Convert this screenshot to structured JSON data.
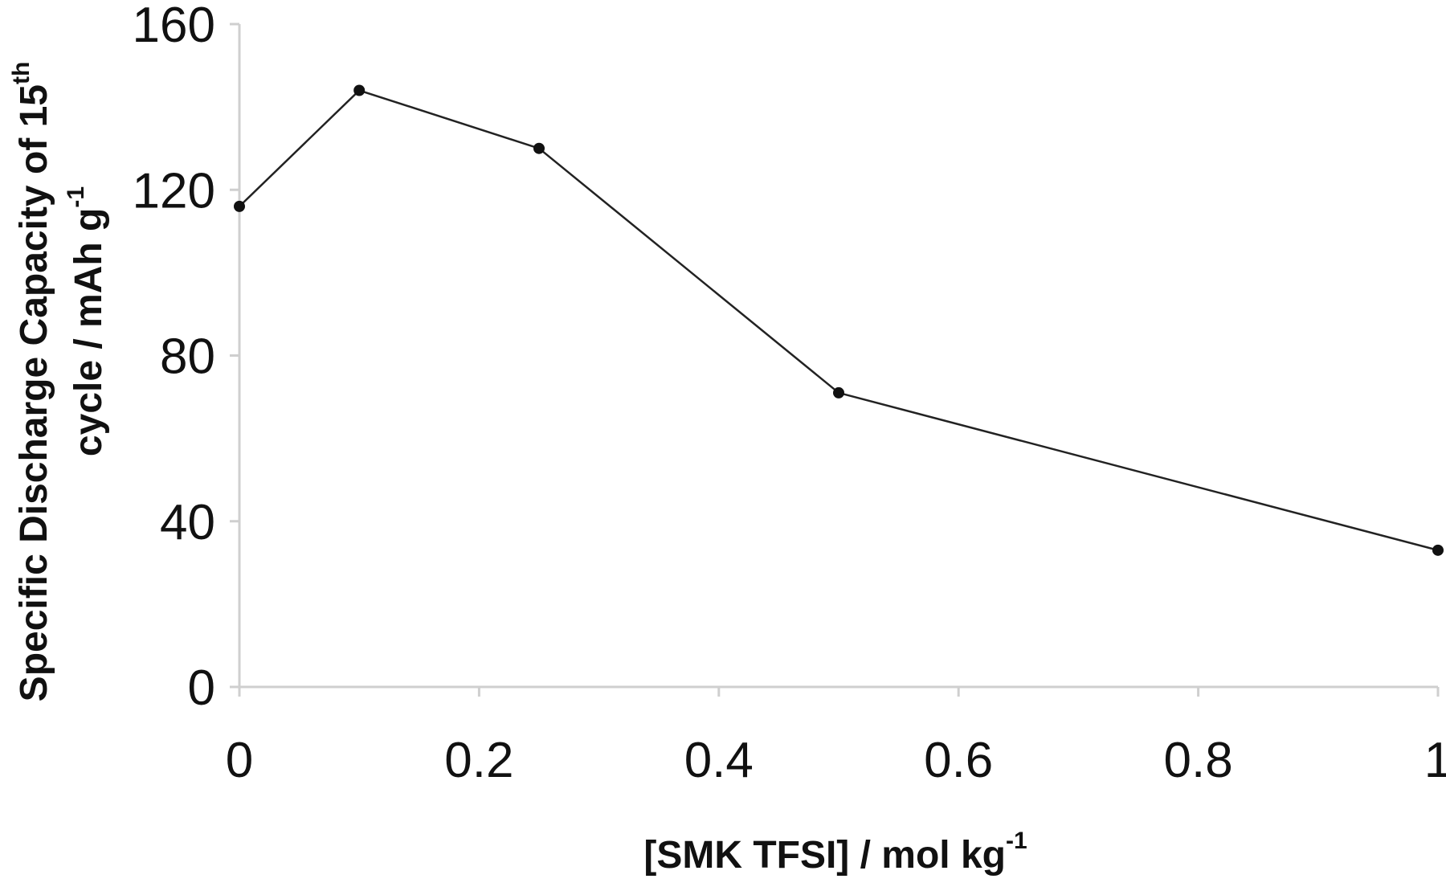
{
  "chart_data": {
    "type": "line",
    "xlabel": "[SMK TFSI] / mol kg",
    "xlabel_sup": "-1",
    "ylabel_line1": "Specific Discharge Capacity of 15",
    "ylabel_line1_sup": "th",
    "ylabel_line2": "cycle / mAh g",
    "ylabel_line2_sup": "-1",
    "xlim": [
      0,
      1
    ],
    "ylim": [
      0,
      160
    ],
    "x_ticks": [
      0,
      0.2,
      0.4,
      0.6,
      0.8,
      1
    ],
    "x_tick_labels": [
      "0",
      "0.2",
      "0.4",
      "0.6",
      "0.8",
      "1"
    ],
    "y_ticks": [
      0,
      40,
      80,
      120,
      160
    ],
    "y_tick_labels": [
      "0",
      "40",
      "80",
      "120",
      "160"
    ],
    "grid": false,
    "series": [
      {
        "x": [
          0,
          0.1,
          0.25,
          0.5,
          1
        ],
        "y": [
          116,
          144,
          130,
          71,
          33
        ]
      }
    ],
    "colors": {
      "line": "#222222",
      "axis": "#cfcfcf"
    }
  }
}
